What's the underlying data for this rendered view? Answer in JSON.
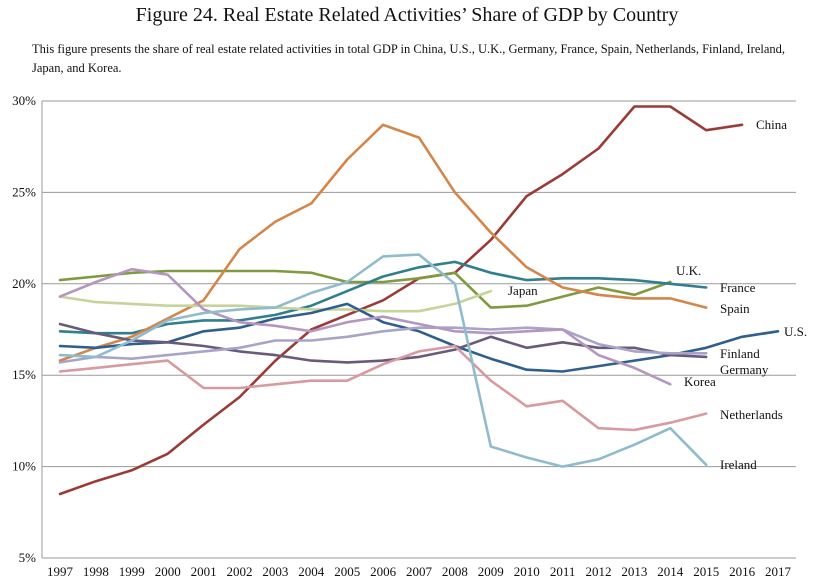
{
  "chart_data": {
    "type": "line",
    "title": "Figure 24. Real Estate Related Activities’ Share of GDP by Country",
    "subtitle": "This figure presents the share of real estate related activities in total GDP in China, U.S., U.K., Germany, France, Spain, Netherlands, Finland, Ireland, Japan, and Korea.",
    "xlabel": "",
    "ylabel": "",
    "x": [
      1997,
      1998,
      1999,
      2000,
      2001,
      2002,
      2003,
      2004,
      2005,
      2006,
      2007,
      2008,
      2009,
      2010,
      2011,
      2012,
      2013,
      2014,
      2015,
      2016,
      2017
    ],
    "ylim": [
      5,
      30
    ],
    "yticks": [
      5,
      10,
      15,
      20,
      25,
      30
    ],
    "ytick_labels": [
      "5%",
      "10%",
      "15%",
      "20%",
      "25%",
      "30%"
    ],
    "grid": "horizontal",
    "series": [
      {
        "name": "China",
        "color": "#9b3b37",
        "values": [
          8.5,
          9.2,
          9.8,
          10.7,
          12.3,
          13.8,
          15.8,
          17.5,
          18.3,
          19.1,
          20.3,
          20.6,
          22.4,
          24.8,
          26.0,
          27.4,
          29.7,
          29.7,
          28.4,
          28.7,
          null
        ]
      },
      {
        "name": "U.K.",
        "color": "#7f9a3f",
        "values": [
          20.2,
          20.4,
          20.6,
          20.7,
          20.7,
          20.7,
          20.7,
          20.6,
          20.1,
          20.1,
          20.3,
          20.6,
          18.7,
          18.8,
          19.3,
          19.8,
          19.4,
          20.1,
          null,
          null,
          null
        ]
      },
      {
        "name": "France",
        "color": "#2f7f8f",
        "values": [
          17.4,
          17.3,
          17.3,
          17.8,
          18.0,
          18.0,
          18.3,
          18.8,
          19.6,
          20.4,
          20.9,
          21.2,
          20.6,
          20.2,
          20.3,
          20.3,
          20.2,
          20.0,
          19.8,
          null,
          null
        ]
      },
      {
        "name": "Spain",
        "color": "#d4864a",
        "values": [
          15.8,
          16.5,
          17.1,
          18.1,
          19.1,
          21.9,
          23.4,
          24.4,
          26.8,
          28.7,
          28.0,
          25.0,
          22.8,
          20.9,
          19.8,
          19.4,
          19.2,
          19.2,
          18.7,
          null,
          null
        ]
      },
      {
        "name": "Japan",
        "color": "#c6d49a",
        "values": [
          19.3,
          19.0,
          18.9,
          18.8,
          18.8,
          18.8,
          18.7,
          18.6,
          18.6,
          18.5,
          18.5,
          18.9,
          19.6,
          null,
          null,
          null,
          null,
          null,
          null,
          null,
          null
        ]
      },
      {
        "name": "U.S.",
        "color": "#2f5f8f",
        "values": [
          16.6,
          16.5,
          16.7,
          16.8,
          17.4,
          17.6,
          18.1,
          18.4,
          18.9,
          17.9,
          17.4,
          16.6,
          15.9,
          15.3,
          15.2,
          15.5,
          15.8,
          16.1,
          16.5,
          17.1,
          17.4
        ]
      },
      {
        "name": "Finland",
        "color": "#6a5a7a",
        "values": [
          17.8,
          17.3,
          16.9,
          16.8,
          16.6,
          16.3,
          16.1,
          15.8,
          15.7,
          15.8,
          16.0,
          16.4,
          17.1,
          16.5,
          16.8,
          16.5,
          16.5,
          16.1,
          16.0,
          null,
          null
        ]
      },
      {
        "name": "Germany",
        "color": "#a8a4c8",
        "values": [
          15.7,
          16.0,
          15.9,
          16.1,
          16.3,
          16.5,
          16.9,
          16.9,
          17.1,
          17.4,
          17.6,
          17.6,
          17.5,
          17.6,
          17.5,
          16.7,
          16.3,
          16.2,
          16.2,
          null,
          null
        ]
      },
      {
        "name": "Korea",
        "color": "#b497c0",
        "values": [
          19.3,
          20.1,
          20.8,
          20.5,
          18.6,
          17.9,
          17.7,
          17.4,
          17.9,
          18.2,
          17.8,
          17.4,
          17.3,
          17.4,
          17.5,
          16.1,
          15.4,
          14.5,
          null,
          null,
          null
        ]
      },
      {
        "name": "Netherlands",
        "color": "#d89aa0",
        "values": [
          15.2,
          15.4,
          15.6,
          15.8,
          14.3,
          14.3,
          14.5,
          14.7,
          14.7,
          15.6,
          16.3,
          16.6,
          14.7,
          13.3,
          13.6,
          12.1,
          12.0,
          12.4,
          12.9,
          null,
          null
        ]
      },
      {
        "name": "Ireland",
        "color": "#8fbccc",
        "values": [
          16.1,
          16.0,
          16.9,
          18.0,
          18.4,
          18.6,
          18.7,
          19.5,
          20.1,
          21.5,
          21.6,
          20.0,
          11.1,
          10.5,
          10.0,
          10.4,
          11.2,
          12.1,
          10.1,
          null,
          null
        ]
      }
    ]
  }
}
